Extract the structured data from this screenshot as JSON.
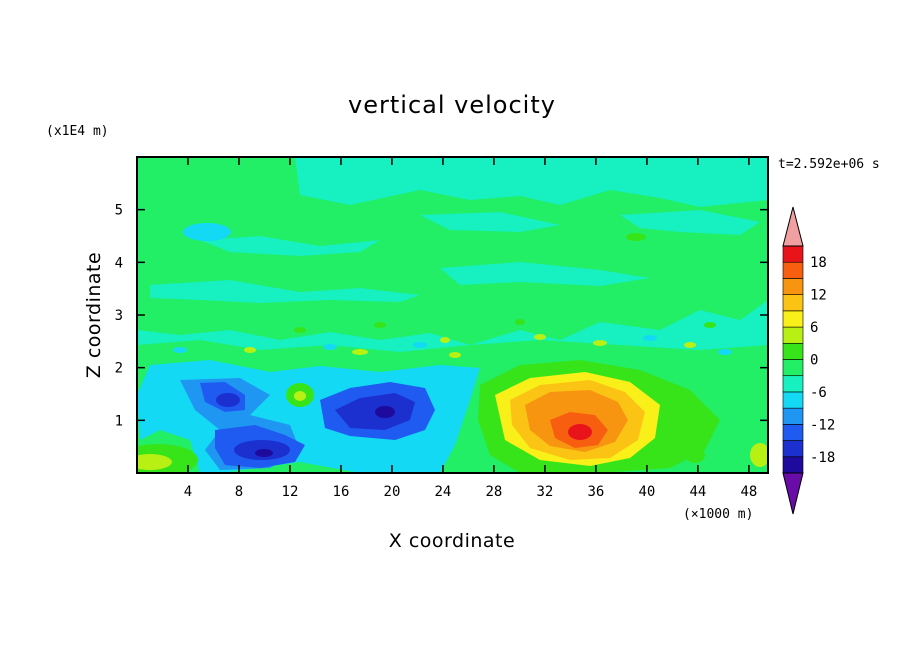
{
  "chart_data": {
    "type": "heatmap",
    "title": "vertical velocity",
    "xlabel": "X coordinate",
    "ylabel": "Z coordinate",
    "x_scale_label": "(×1000 m)",
    "y_scale_label": "(x1E4 m)",
    "time_label": "t=2.592e+06 s",
    "xlim": [
      0,
      49.5
    ],
    "ylim": [
      0,
      6
    ],
    "x_ticks": [
      4,
      8,
      12,
      16,
      20,
      24,
      28,
      32,
      36,
      40,
      44,
      48
    ],
    "y_ticks": [
      1,
      2,
      3,
      4,
      5
    ],
    "colorbar": {
      "ticks": [
        18,
        12,
        6,
        0,
        -6,
        -12,
        -18
      ],
      "levels": [
        -21,
        -18,
        -15,
        -12,
        -9,
        -6,
        -3,
        0,
        3,
        6,
        9,
        12,
        15,
        18,
        21
      ],
      "colors": [
        "#6a0da8",
        "#1e0a9c",
        "#1c2fcf",
        "#1f5bf0",
        "#1e96f2",
        "#14d9f5",
        "#17f0c0",
        "#22ee66",
        "#37e41a",
        "#b8f014",
        "#f8f018",
        "#fbc414",
        "#f79410",
        "#f75e10",
        "#e8141a",
        "#f0a0a0"
      ],
      "extend": "both"
    },
    "features": [
      {
        "kind": "updraft",
        "x": 35,
        "z": 0.85,
        "peak": 18
      },
      {
        "kind": "downdraft",
        "x": 10,
        "z": 0.45,
        "peak": -15
      },
      {
        "kind": "downdraft",
        "x": 19,
        "z": 1.1,
        "peak": -14
      },
      {
        "kind": "downdraft",
        "x": 8.5,
        "z": 1.35,
        "peak": -12
      },
      {
        "kind": "updraft",
        "x": 2.5,
        "z": 0.2,
        "peak": 6
      },
      {
        "kind": "updraft",
        "x": 14,
        "z": 1.45,
        "peak": 5
      },
      {
        "kind": "downdraft",
        "x": 7,
        "z": 4.5,
        "peak": -4
      }
    ]
  }
}
